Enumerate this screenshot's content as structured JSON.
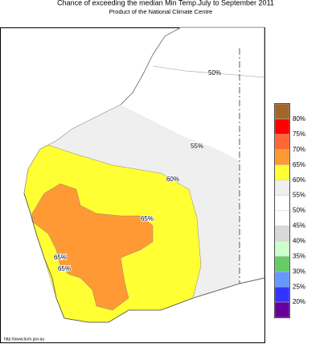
{
  "header": {
    "title": "Chance of exceeding the median Min Temp.July to September 2011",
    "subtitle": "Product of the National Climate Centre"
  },
  "map": {
    "contour_labels": [
      "50%",
      "55%",
      "60%",
      "65%",
      "65%",
      "65%"
    ]
  },
  "legend": {
    "colors": [
      "#a0662a",
      "#ff0000",
      "#ff6633",
      "#ff9933",
      "#ffff33",
      "#efefef",
      "#ffffff",
      "#ffffff",
      "#d9d9d9",
      "#ccffcc",
      "#66cc66",
      "#6699ff",
      "#3333ff",
      "#660099"
    ],
    "labels": [
      "80%",
      "75%",
      "70%",
      "65%",
      "60%",
      "55%",
      "50%",
      "45%",
      "40%",
      "35%",
      "30%",
      "25%",
      "20%"
    ]
  },
  "footer": {
    "url": "http://www.bom.gov.au"
  }
}
